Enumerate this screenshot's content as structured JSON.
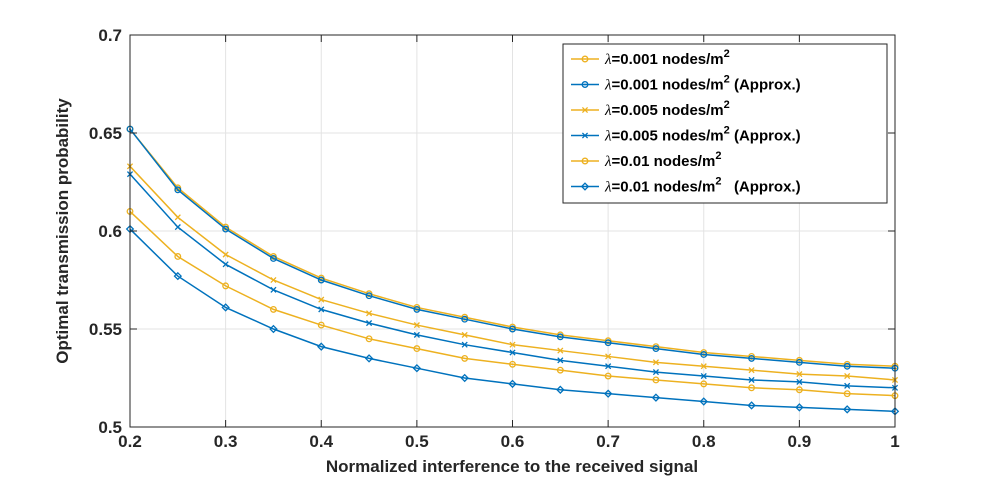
{
  "chart_data": {
    "type": "line",
    "title": "",
    "xlabel": "Normalized interference to the received signal",
    "ylabel": "Optimal transmission probability",
    "xlim": [
      0.2,
      1.0
    ],
    "ylim": [
      0.5,
      0.7
    ],
    "xticks": [
      0.2,
      0.3,
      0.4,
      0.5,
      0.6,
      0.7,
      0.8,
      0.9,
      1.0
    ],
    "xtick_labels": [
      "0.2",
      "0.3",
      "0.4",
      "0.5",
      "0.6",
      "0.7",
      "0.8",
      "0.9",
      "1"
    ],
    "yticks": [
      0.5,
      0.55,
      0.6,
      0.65,
      0.7
    ],
    "ytick_labels": [
      "0.5",
      "0.55",
      "0.6",
      "0.65",
      "0.7"
    ],
    "grid": true,
    "legend_position": "top-right",
    "x": [
      0.2,
      0.25,
      0.3,
      0.35,
      0.4,
      0.45,
      0.5,
      0.55,
      0.6,
      0.65,
      0.7,
      0.75,
      0.8,
      0.85,
      0.9,
      0.95,
      1.0
    ],
    "series": [
      {
        "name": "λ=0.001 nodes/m2",
        "legend_symbol": "λ",
        "legend_main": "=0.001 nodes/m",
        "legend_sup": "2",
        "legend_suffix": "",
        "color": "#EDB120",
        "marker": "circle",
        "values": [
          0.652,
          0.622,
          0.602,
          0.587,
          0.576,
          0.568,
          0.561,
          0.556,
          0.551,
          0.547,
          0.544,
          0.541,
          0.538,
          0.536,
          0.534,
          0.532,
          0.531
        ]
      },
      {
        "name": "λ=0.001 nodes/m2 (Approx.)",
        "legend_symbol": "λ",
        "legend_main": "=0.001 nodes/m",
        "legend_sup": "2",
        "legend_suffix": " (Approx.)",
        "color": "#0072BD",
        "marker": "circle-dot",
        "values": [
          0.652,
          0.621,
          0.601,
          0.586,
          0.575,
          0.567,
          0.56,
          0.555,
          0.55,
          0.546,
          0.543,
          0.54,
          0.537,
          0.535,
          0.533,
          0.531,
          0.53
        ]
      },
      {
        "name": "λ=0.005 nodes/m2",
        "legend_symbol": "λ",
        "legend_main": "=0.005 nodes/m",
        "legend_sup": "2",
        "legend_suffix": "",
        "color": "#EDB120",
        "marker": "x",
        "values": [
          0.633,
          0.607,
          0.588,
          0.575,
          0.565,
          0.558,
          0.552,
          0.547,
          0.542,
          0.539,
          0.536,
          0.533,
          0.531,
          0.529,
          0.527,
          0.526,
          0.524
        ]
      },
      {
        "name": "λ=0.005 nodes/m2 (Approx.)",
        "legend_symbol": "λ",
        "legend_main": "=0.005 nodes/m",
        "legend_sup": "2",
        "legend_suffix": " (Approx.)",
        "color": "#0072BD",
        "marker": "x",
        "values": [
          0.629,
          0.602,
          0.583,
          0.57,
          0.56,
          0.553,
          0.547,
          0.542,
          0.538,
          0.534,
          0.531,
          0.528,
          0.526,
          0.524,
          0.523,
          0.521,
          0.52
        ]
      },
      {
        "name": "λ=0.01 nodes/m2",
        "legend_symbol": "λ",
        "legend_main": "=0.01 nodes/m",
        "legend_sup": "2",
        "legend_suffix": "",
        "color": "#EDB120",
        "marker": "circle",
        "values": [
          0.61,
          0.587,
          0.572,
          0.56,
          0.552,
          0.545,
          0.54,
          0.535,
          0.532,
          0.529,
          0.526,
          0.524,
          0.522,
          0.52,
          0.519,
          0.517,
          0.516
        ]
      },
      {
        "name": "λ=0.01 nodes/m2 (Approx.)",
        "legend_symbol": "λ",
        "legend_main": "=0.01 nodes/m",
        "legend_sup": "2",
        "legend_suffix": "   (Approx.)",
        "color": "#0072BD",
        "marker": "diamond",
        "values": [
          0.601,
          0.577,
          0.561,
          0.55,
          0.541,
          0.535,
          0.53,
          0.525,
          0.522,
          0.519,
          0.517,
          0.515,
          0.513,
          0.511,
          0.51,
          0.509,
          0.508
        ]
      }
    ]
  }
}
